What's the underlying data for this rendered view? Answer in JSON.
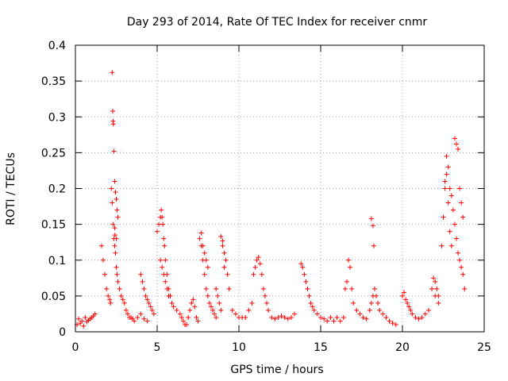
{
  "chart_data": {
    "type": "scatter",
    "title": "Day 293 of 2014, Rate Of TEC Index for receiver cnmr",
    "xlabel": "GPS time / hours",
    "ylabel": "ROTI / TECUs",
    "xlim": [
      0,
      25
    ],
    "ylim": [
      0,
      0.4
    ],
    "xticks": [
      0,
      5,
      10,
      15,
      20,
      25
    ],
    "yticks": [
      0,
      0.05,
      0.1,
      0.15,
      0.2,
      0.25,
      0.3,
      0.35,
      0.4
    ],
    "ytick_labels": [
      "0",
      "0.05",
      "0.1",
      "0.15",
      "0.2",
      "0.25",
      "0.3",
      "0.35",
      "0.4"
    ],
    "xtick_labels": [
      "0",
      "5",
      "10",
      "15",
      "20",
      "25"
    ],
    "grid": true,
    "marker": "+",
    "color": "#ff0000",
    "series": [
      {
        "name": "ROTI",
        "x": [
          0.1,
          0.2,
          0.3,
          0.4,
          0.5,
          0.6,
          0.7,
          0.8,
          0.9,
          1.0,
          1.1,
          1.2,
          1.6,
          1.7,
          1.8,
          1.9,
          2.0,
          2.1,
          2.15,
          2.2,
          2.25,
          2.3,
          2.35,
          2.4,
          2.45,
          2.5,
          2.55,
          2.6,
          2.7,
          2.8,
          2.9,
          3.0,
          3.1,
          3.2,
          3.3,
          3.4,
          3.5,
          3.6,
          3.8,
          4.0,
          4.2,
          4.4,
          2.25,
          2.28,
          2.3,
          2.32,
          2.36,
          2.4,
          2.45,
          2.5,
          2.55,
          2.6,
          2.4,
          2.42,
          2.5,
          4.0,
          4.1,
          4.2,
          4.3,
          4.4,
          4.5,
          4.6,
          4.7,
          4.8,
          5.0,
          5.1,
          5.2,
          5.25,
          5.3,
          5.35,
          5.4,
          5.45,
          5.5,
          5.6,
          5.7,
          5.8,
          5.9,
          6.0,
          6.2,
          6.4,
          5.2,
          5.3,
          5.4,
          5.5,
          5.6,
          5.7,
          6.5,
          6.6,
          6.7,
          6.8,
          6.9,
          7.0,
          7.1,
          7.2,
          7.3,
          7.4,
          7.5,
          7.6,
          7.7,
          7.8,
          7.9,
          8.0,
          8.1,
          8.2,
          8.3,
          8.4,
          8.5,
          8.6,
          7.7,
          7.8,
          7.9,
          8.0,
          8.1,
          8.6,
          8.7,
          8.8,
          8.9,
          9.0,
          9.1,
          9.2,
          9.3,
          9.4,
          8.9,
          9.0,
          9.1,
          9.6,
          9.8,
          10.0,
          10.2,
          10.4,
          10.6,
          10.8,
          10.9,
          11.0,
          11.1,
          11.2,
          11.3,
          11.4,
          11.5,
          11.6,
          11.7,
          11.8,
          12.0,
          12.2,
          12.4,
          12.6,
          12.8,
          13.0,
          13.2,
          13.4,
          13.8,
          13.9,
          14.0,
          14.1,
          14.2,
          14.3,
          14.4,
          14.5,
          14.6,
          14.8,
          15.0,
          15.2,
          15.4,
          15.6,
          15.8,
          16.0,
          16.2,
          16.4,
          16.5,
          16.6,
          16.7,
          16.8,
          16.9,
          17.0,
          17.2,
          17.4,
          17.6,
          17.8,
          18.0,
          18.1,
          18.2,
          18.3,
          18.4,
          18.5,
          18.6,
          18.8,
          19.0,
          19.2,
          19.4,
          19.6,
          18.1,
          18.2,
          18.25,
          20.0,
          20.1,
          20.2,
          20.3,
          20.4,
          20.5,
          20.6,
          20.8,
          21.0,
          21.2,
          21.4,
          21.6,
          21.8,
          22.0,
          22.2,
          21.9,
          22.0,
          22.1,
          22.2,
          22.4,
          22.5,
          22.6,
          22.7,
          22.8,
          22.9,
          23.0,
          23.1,
          23.2,
          23.3,
          23.4,
          23.5,
          23.6,
          23.7,
          23.8,
          22.6,
          22.7,
          22.8,
          22.9,
          23.0,
          23.2,
          23.3,
          23.4,
          23.5,
          23.6,
          23.7
        ],
        "y": [
          0.01,
          0.018,
          0.012,
          0.015,
          0.008,
          0.02,
          0.014,
          0.016,
          0.018,
          0.02,
          0.022,
          0.025,
          0.12,
          0.1,
          0.08,
          0.06,
          0.05,
          0.045,
          0.04,
          0.2,
          0.18,
          0.15,
          0.13,
          0.12,
          0.11,
          0.09,
          0.08,
          0.07,
          0.06,
          0.05,
          0.045,
          0.04,
          0.03,
          0.025,
          0.02,
          0.02,
          0.018,
          0.015,
          0.02,
          0.025,
          0.018,
          0.015,
          0.362,
          0.308,
          0.294,
          0.29,
          0.252,
          0.21,
          0.195,
          0.185,
          0.17,
          0.16,
          0.145,
          0.135,
          0.13,
          0.08,
          0.07,
          0.06,
          0.05,
          0.045,
          0.04,
          0.035,
          0.03,
          0.025,
          0.14,
          0.15,
          0.16,
          0.17,
          0.16,
          0.15,
          0.13,
          0.12,
          0.1,
          0.08,
          0.06,
          0.05,
          0.04,
          0.035,
          0.03,
          0.025,
          0.1,
          0.09,
          0.08,
          0.07,
          0.06,
          0.05,
          0.02,
          0.015,
          0.01,
          0.01,
          0.02,
          0.03,
          0.04,
          0.045,
          0.035,
          0.02,
          0.015,
          0.13,
          0.12,
          0.1,
          0.08,
          0.06,
          0.05,
          0.04,
          0.035,
          0.03,
          0.025,
          0.02,
          0.138,
          0.12,
          0.11,
          0.1,
          0.09,
          0.06,
          0.05,
          0.04,
          0.03,
          0.12,
          0.11,
          0.1,
          0.08,
          0.06,
          0.133,
          0.127,
          0.09,
          0.03,
          0.025,
          0.02,
          0.02,
          0.02,
          0.03,
          0.04,
          0.08,
          0.09,
          0.1,
          0.104,
          0.095,
          0.08,
          0.06,
          0.05,
          0.04,
          0.03,
          0.02,
          0.018,
          0.02,
          0.022,
          0.02,
          0.018,
          0.02,
          0.025,
          0.095,
          0.09,
          0.08,
          0.07,
          0.06,
          0.05,
          0.04,
          0.035,
          0.03,
          0.025,
          0.02,
          0.018,
          0.015,
          0.02,
          0.015,
          0.02,
          0.015,
          0.02,
          0.06,
          0.07,
          0.1,
          0.09,
          0.06,
          0.04,
          0.03,
          0.025,
          0.02,
          0.018,
          0.03,
          0.04,
          0.05,
          0.06,
          0.05,
          0.04,
          0.03,
          0.025,
          0.02,
          0.015,
          0.012,
          0.01,
          0.158,
          0.148,
          0.12,
          0.05,
          0.055,
          0.045,
          0.04,
          0.035,
          0.03,
          0.025,
          0.02,
          0.018,
          0.02,
          0.025,
          0.03,
          0.06,
          0.05,
          0.04,
          0.075,
          0.07,
          0.06,
          0.05,
          0.12,
          0.16,
          0.2,
          0.245,
          0.23,
          0.2,
          0.19,
          0.17,
          0.15,
          0.13,
          0.11,
          0.1,
          0.09,
          0.08,
          0.06,
          0.21,
          0.22,
          0.18,
          0.14,
          0.12,
          0.27,
          0.262,
          0.255,
          0.2,
          0.18,
          0.16
        ]
      }
    ]
  }
}
